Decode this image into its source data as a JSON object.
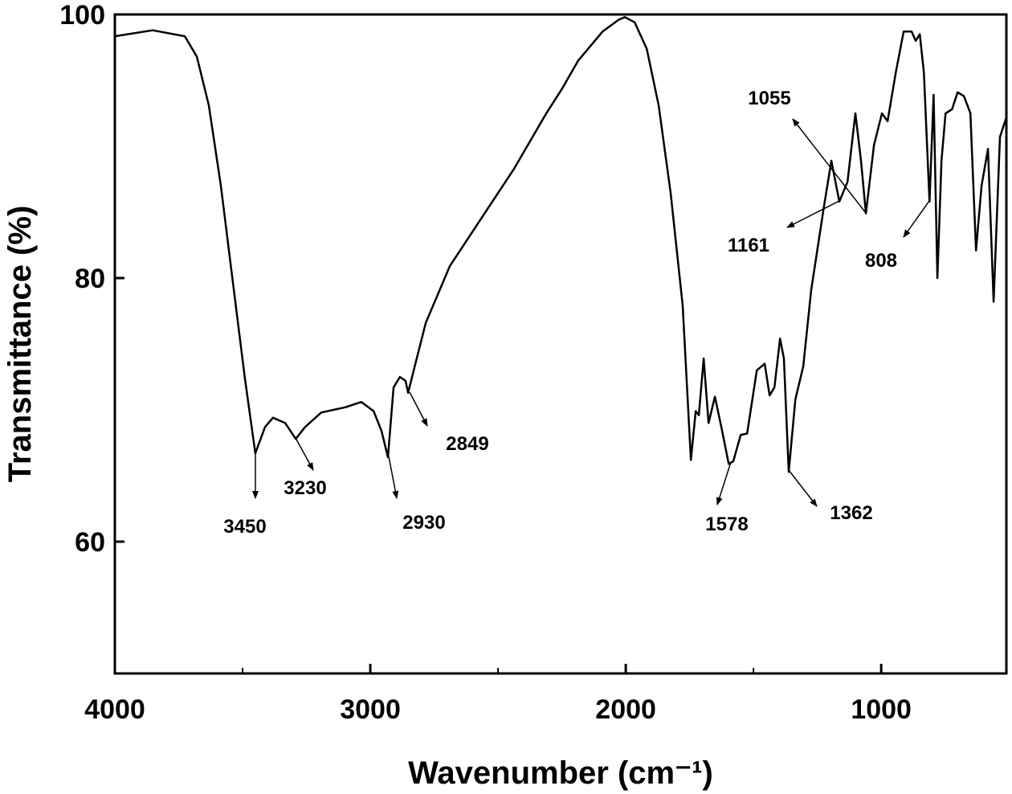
{
  "chart_data": {
    "type": "line",
    "xlabel": "Wavenumber (cm⁻¹)",
    "ylabel": "Transmittance (%)",
    "xlim": [
      4000,
      510
    ],
    "ylim": [
      50,
      100
    ],
    "xticks": [
      4000,
      3000,
      2000,
      1000
    ],
    "xticks_minor": [
      3500,
      2500,
      1500
    ],
    "yticks": [
      60,
      80,
      100
    ],
    "color": "#000000",
    "series": [
      {
        "x": [
          4000,
          3852,
          3726,
          3679,
          3632,
          3585,
          3538,
          3491,
          3450,
          3412,
          3381,
          3333,
          3292,
          3255,
          3192,
          3097,
          3035,
          2987,
          2956,
          2931,
          2909,
          2884,
          2862,
          2852,
          2830,
          2783,
          2689,
          2563,
          2437,
          2311,
          2248,
          2186,
          2091,
          2028,
          2003,
          1965,
          1918,
          1871,
          1824,
          1777,
          1745,
          1726,
          1714,
          1695,
          1676,
          1651,
          1626,
          1597,
          1579,
          1550,
          1525,
          1487,
          1456,
          1437,
          1418,
          1396,
          1381,
          1362,
          1336,
          1305,
          1274,
          1226,
          1195,
          1164,
          1132,
          1101,
          1079,
          1060,
          1028,
          997,
          975,
          943,
          912,
          881,
          865,
          849,
          833,
          811,
          795,
          780,
          764,
          748,
          723,
          701,
          676,
          651,
          629,
          607,
          582,
          560,
          535,
          510
        ],
        "values": [
          98.35,
          98.8,
          98.35,
          96.8,
          93.1,
          87.0,
          79.7,
          72.4,
          66.7,
          68.7,
          69.4,
          69.0,
          67.8,
          68.7,
          69.8,
          70.2,
          70.6,
          69.9,
          68.4,
          66.4,
          71.7,
          72.5,
          72.2,
          71.3,
          73.0,
          76.6,
          80.9,
          84.6,
          88.3,
          92.5,
          94.4,
          96.5,
          98.7,
          99.6,
          99.8,
          99.4,
          97.4,
          93.1,
          86.4,
          77.9,
          66.2,
          69.9,
          69.6,
          73.9,
          69.0,
          71.0,
          68.7,
          65.9,
          66.1,
          68.1,
          68.2,
          73.0,
          73.5,
          71.1,
          71.7,
          75.4,
          73.9,
          65.3,
          70.8,
          73.3,
          79.1,
          85.2,
          88.9,
          85.8,
          87.3,
          92.5,
          88.9,
          84.9,
          90.1,
          92.5,
          91.9,
          95.6,
          98.7,
          98.7,
          98.0,
          98.5,
          95.6,
          85.8,
          93.9,
          80.0,
          88.9,
          92.5,
          92.8,
          94.1,
          93.8,
          92.5,
          82.1,
          87.0,
          89.8,
          78.2,
          90.7,
          92.2
        ]
      }
    ],
    "annotations": [
      "3450",
      "3230",
      "2930",
      "2849",
      "1578",
      "1362",
      "1161",
      "1055",
      "808"
    ]
  }
}
